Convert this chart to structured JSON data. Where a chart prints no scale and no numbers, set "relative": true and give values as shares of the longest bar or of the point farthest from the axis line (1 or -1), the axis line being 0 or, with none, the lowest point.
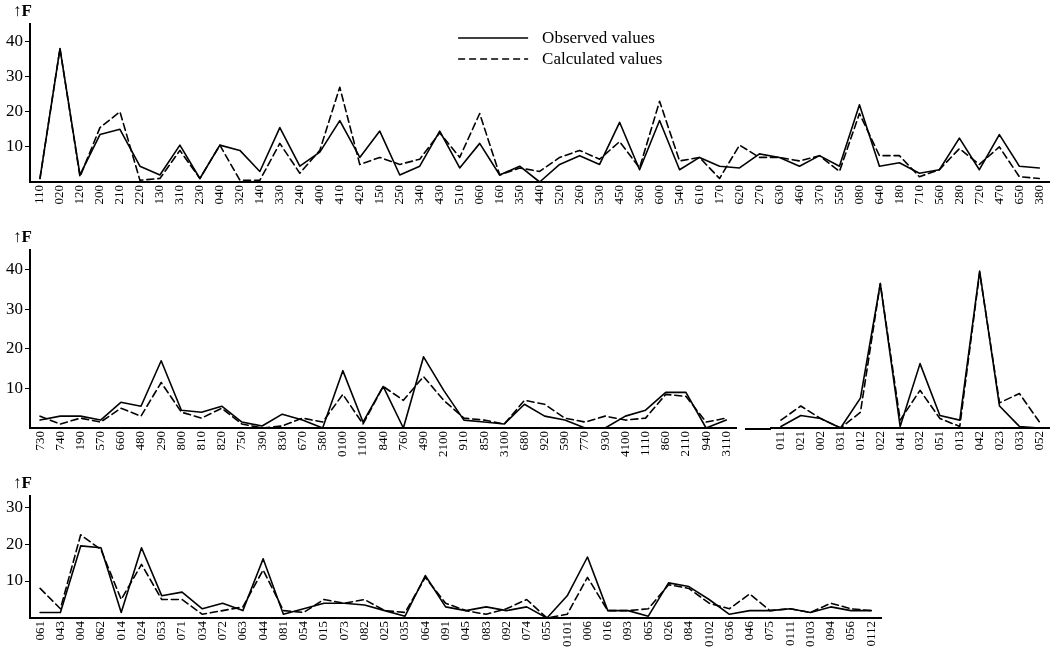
{
  "chart_data": [
    {
      "type": "line",
      "ylabel": "↑F",
      "legend": "top",
      "ylim": [
        0,
        45
      ],
      "yticks": [
        10,
        20,
        30,
        40
      ],
      "categories": [
        "110",
        "020",
        "120",
        "200",
        "210",
        "220",
        "130",
        "310",
        "230",
        "040",
        "320",
        "140",
        "330",
        "240",
        "400",
        "410",
        "420",
        "150",
        "250",
        "340",
        "430",
        "510",
        "060",
        "160",
        "350",
        "440",
        "520",
        "260",
        "530",
        "450",
        "360",
        "600",
        "540",
        "610",
        "170",
        "620",
        "270",
        "630",
        "460",
        "370",
        "550",
        "080",
        "640",
        "180",
        "710",
        "560",
        "280",
        "720",
        "470",
        "650",
        "380"
      ],
      "series": [
        {
          "name": "Observed values",
          "color": "#000000",
          "line_style": "solid",
          "values": [
            1,
            38,
            2,
            13.5,
            15,
            4.5,
            2,
            10.5,
            1,
            10.5,
            9,
            3,
            15.5,
            4.5,
            8.5,
            17.5,
            7,
            14.5,
            2,
            4.5,
            14.5,
            4,
            11,
            2,
            4.5,
            0,
            5,
            7.5,
            5,
            17,
            3.5,
            17.5,
            3.5,
            7,
            4.5,
            4,
            8,
            7,
            4.5,
            7.5,
            4.5,
            22,
            4.5,
            5.5,
            2.5,
            3.5,
            12.5,
            3.5,
            13.5,
            4.5,
            4
          ]
        },
        {
          "name": "Calculated values",
          "color": "#000000",
          "line_style": "dashed",
          "values": [
            1,
            38,
            1.5,
            15.5,
            20,
            0.5,
            1,
            9,
            1,
            10.5,
            0.5,
            0.5,
            11,
            2.5,
            9,
            27,
            5,
            7,
            5,
            6.5,
            14,
            7,
            19.5,
            2,
            4,
            3,
            7,
            9,
            6.5,
            11.5,
            4,
            23,
            6,
            7,
            1,
            10.5,
            7,
            7,
            6,
            7.5,
            3,
            19.5,
            7.5,
            7.5,
            1.5,
            3.5,
            9.5,
            5,
            10,
            1.5,
            1
          ]
        }
      ]
    },
    {
      "type": "line",
      "ylabel": "↑F",
      "ylim": [
        0,
        45
      ],
      "yticks": [
        10,
        20,
        30,
        40
      ],
      "categories": [
        "730",
        "740",
        "190",
        "570",
        "660",
        "480",
        "290",
        "800",
        "810",
        "820",
        "750",
        "390",
        "830",
        "670",
        "580",
        "0100",
        "1100",
        "840",
        "760",
        "490",
        "2100",
        "910",
        "850",
        "3100",
        "680",
        "920",
        "590",
        "770",
        "930",
        "4100",
        "1110",
        "860",
        "2110",
        "940",
        "3110"
      ],
      "series": [
        {
          "color": "#000000",
          "line_style": "solid",
          "values": [
            2,
            3,
            3,
            2,
            6.5,
            5.5,
            17,
            4.5,
            4,
            5.5,
            1.5,
            0.5,
            3.5,
            2,
            0,
            14.5,
            1.5,
            10.5,
            0,
            18,
            9.5,
            2,
            1.5,
            1,
            6,
            3,
            2,
            0,
            0,
            3,
            4.5,
            9,
            9,
            0,
            2
          ]
        },
        {
          "color": "#000000",
          "line_style": "dashed",
          "values": [
            3,
            1,
            2.5,
            1.5,
            5,
            3,
            11.5,
            4,
            2.5,
            5,
            1,
            0,
            0.5,
            2.5,
            1.5,
            8.5,
            1,
            10.5,
            7,
            13,
            7,
            2.5,
            2,
            1,
            7,
            6,
            2.5,
            1.5,
            3,
            2,
            2.5,
            8.5,
            8,
            1.5,
            2.5
          ]
        }
      ]
    },
    {
      "type": "line",
      "tick_labels": "x",
      "relative": true,
      "categories": [
        "011",
        "021",
        "002",
        "031",
        "012",
        "022",
        "041",
        "032",
        "051",
        "013",
        "042",
        "023",
        "033",
        "052"
      ],
      "series": [
        {
          "color": "#000000",
          "line_style": "solid",
          "values": [
            0.01,
            0.08,
            0.06,
            0,
            0.19,
            0.92,
            0.01,
            0.41,
            0.08,
            0.05,
            1,
            0.14,
            0.01,
            0
          ]
        },
        {
          "color": "#000000",
          "line_style": "dashed",
          "values": [
            0.05,
            0.14,
            0.06,
            0,
            0.1,
            0.92,
            0.05,
            0.24,
            0.06,
            0.01,
            0.99,
            0.16,
            0.22,
            0.04
          ]
        }
      ]
    },
    {
      "type": "line",
      "ylabel": "↑F",
      "ylim": [
        0,
        33
      ],
      "yticks": [
        10,
        20,
        30
      ],
      "categories": [
        "061",
        "043",
        "004",
        "062",
        "014",
        "024",
        "053",
        "071",
        "034",
        "072",
        "063",
        "044",
        "081",
        "054",
        "015",
        "073",
        "082",
        "025",
        "035",
        "064",
        "091",
        "045",
        "083",
        "092",
        "074",
        "055",
        "0101",
        "006",
        "016",
        "093",
        "065",
        "026",
        "084",
        "0102",
        "036",
        "046",
        "075",
        "0111",
        "0103",
        "094",
        "056",
        "0112"
      ],
      "series": [
        {
          "color": "#000000",
          "line_style": "solid",
          "values": [
            1.5,
            1.5,
            19.5,
            19,
            1.5,
            19,
            6,
            7,
            2.5,
            4,
            2,
            16,
            1,
            2.5,
            4,
            4,
            3.5,
            2,
            0.5,
            11.5,
            3,
            2,
            3,
            2,
            3,
            0,
            6,
            16.5,
            2,
            2,
            0.5,
            9.5,
            8.5,
            5,
            1,
            2,
            2,
            2.5,
            1.5,
            3,
            2,
            2
          ]
        },
        {
          "color": "#000000",
          "line_style": "dashed",
          "values": [
            8,
            2.5,
            22.5,
            18.5,
            5,
            14.5,
            5,
            5,
            1,
            2,
            3,
            13,
            2,
            1.5,
            5,
            4,
            5,
            2,
            1.5,
            11,
            4,
            2,
            1,
            2.5,
            5,
            0,
            1,
            11,
            2,
            2,
            2.5,
            9,
            8,
            4,
            2.5,
            6.5,
            2,
            2.5,
            1.5,
            4,
            2.5,
            2
          ]
        }
      ]
    }
  ]
}
